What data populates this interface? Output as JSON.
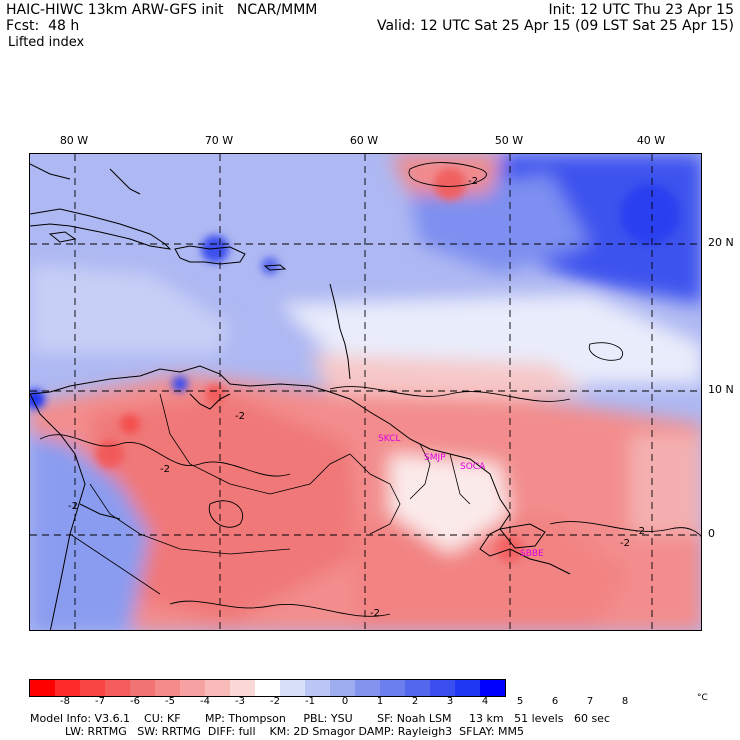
{
  "header": {
    "line1": "HAIC-HIWC 13km ARW-GFS init   NCAR/MMM",
    "line2": "Fcst:  48 h",
    "line3": "Lifted index",
    "init": "Init: 12 UTC Thu 23 Apr 15",
    "valid": "Valid: 12 UTC Sat 25 Apr 15 (09 LST Sat 25 Apr 15)"
  },
  "map": {
    "lon_labels": [
      "80 W",
      "70 W",
      "60 W",
      "50 W",
      "40 W"
    ],
    "lat_labels": [
      "20 N",
      "10 N",
      "0"
    ],
    "contour_labels": [
      "-2",
      "-2",
      "-2",
      "-2",
      "-2",
      "-2",
      "-2"
    ],
    "stations": [
      "SKCL",
      "SMJP",
      "SOCA",
      "SBBE"
    ]
  },
  "colorbar": {
    "ticks": [
      "-8",
      "-7",
      "-6",
      "-5",
      "-4",
      "-3",
      "-2",
      "-1",
      "0",
      "1",
      "2",
      "3",
      "4",
      "5",
      "6",
      "7",
      "8"
    ],
    "unit": "°C",
    "colors": [
      "#ff0000",
      "#ff2a2a",
      "#fa4545",
      "#f55d5d",
      "#f27373",
      "#f58a8a",
      "#f7a2a2",
      "#f9baba",
      "#fcd7d7",
      "#ffffff",
      "#d9e0fa",
      "#bcc6f5",
      "#9eacf0",
      "#8494ee",
      "#6b7eed",
      "#5367ed",
      "#3b4ff0",
      "#1f36f2",
      "#0000ff"
    ]
  },
  "footer": {
    "line1": "Model Info: V3.6.1    CU: KF       MP: Thompson     PBL: YSU       SF: Noah LSM     13 km   51 levels   60 sec",
    "line2": "          LW: RRTMG   SW: RRTMG  DIFF: full    KM: 2D Smagor DAMP: Rayleigh3  SFLAY: MM5"
  }
}
